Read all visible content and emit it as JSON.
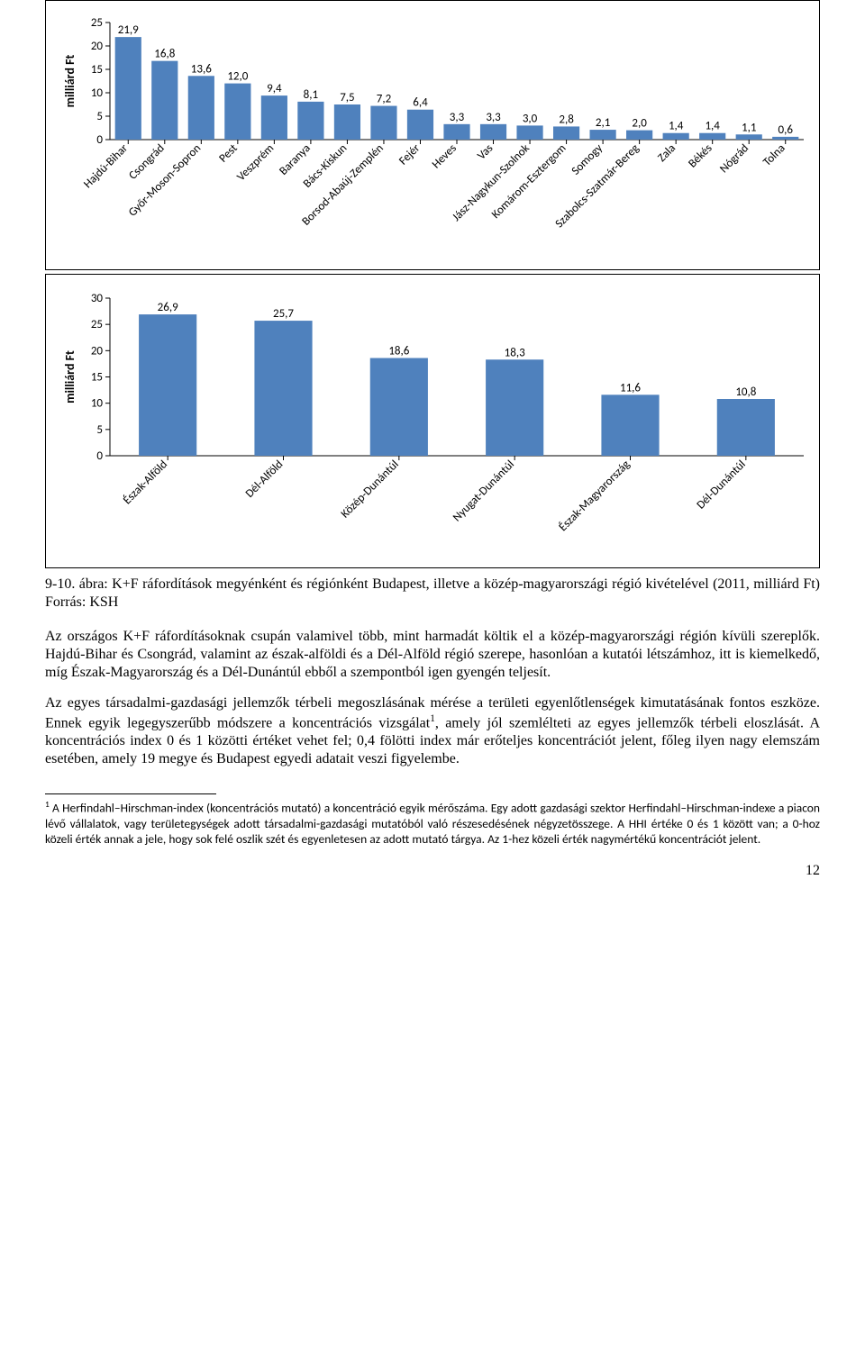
{
  "chart1": {
    "type": "bar",
    "ylabel": "milliárd Ft",
    "ylim": [
      0,
      25
    ],
    "ytick_step": 5,
    "bar_color": "#4f81bd",
    "axis_color": "#000000",
    "grid_color": "#e0e0e0",
    "background_color": "#ffffff",
    "tick_fontsize": 13,
    "value_fontsize": 13,
    "cat_fontsize": 13,
    "ylabel_fontsize": 14,
    "categories": [
      "Hajdú-Bihar",
      "Csongrád",
      "Győr-Moson-Sopron",
      "Pest",
      "Veszprém",
      "Baranya",
      "Bács-Kiskun",
      "Borsod-Abaúj-Zemplén",
      "Fejér",
      "Heves",
      "Vas",
      "Jász-Nagykun-Szolnok",
      "Komárom-Esztergom",
      "Somogy",
      "Szabolcs-Szatmár-Bereg",
      "Zala",
      "Békés",
      "Nógrád",
      "Tolna"
    ],
    "values": [
      21.9,
      16.8,
      13.6,
      12.0,
      9.4,
      8.1,
      7.5,
      7.2,
      6.4,
      3.3,
      3.3,
      3.0,
      2.8,
      2.1,
      2.0,
      1.4,
      1.4,
      1.1,
      0.6
    ],
    "value_labels": [
      "21,9",
      "16,8",
      "13,6",
      "12,0",
      "9,4",
      "8,1",
      "7,5",
      "7,2",
      "6,4",
      "3,3",
      "3,3",
      "3,0",
      "2,8",
      "2,1",
      "2,0",
      "1,4",
      "1,4",
      "1,1",
      "0,6"
    ]
  },
  "chart2": {
    "type": "bar",
    "ylabel": "milliárd Ft",
    "ylim": [
      0,
      30
    ],
    "ytick_step": 5,
    "bar_color": "#4f81bd",
    "axis_color": "#000000",
    "grid_color": "#e0e0e0",
    "background_color": "#ffffff",
    "tick_fontsize": 13,
    "value_fontsize": 13,
    "cat_fontsize": 13,
    "ylabel_fontsize": 14,
    "bar_width_ratio": 0.5,
    "categories": [
      "Észak-Alföld",
      "Dél-Alföld",
      "Közép-Dunántúl",
      "Nyugat-Dunántúl",
      "Észak-Magyarország",
      "Dél-Dunántúl"
    ],
    "values": [
      26.9,
      25.7,
      18.6,
      18.3,
      11.6,
      10.8
    ],
    "value_labels": [
      "26,9",
      "25,7",
      "18,6",
      "18,3",
      "11,6",
      "10,8"
    ]
  },
  "caption": "9-10. ábra: K+F ráfordítások megyénként és régiónként Budapest, illetve a közép-magyarországi régió kivételével (2011, milliárd Ft) Forrás: KSH",
  "para1": "Az országos K+F ráfordításoknak csupán valamivel több, mint harmadát költik el a közép-magyarországi régión kívüli szereplők. Hajdú-Bihar és Csongrád, valamint az észak-alföldi és a Dél-Alföld régió szerepe, hasonlóan a kutatói létszámhoz, itt is kiemelkedő, míg Észak-Magyarország és a Dél-Dunántúl ebből a szempontból igen gyengén teljesít.",
  "para2_pre": "Az egyes társadalmi-gazdasági jellemzők térbeli megoszlásának mérése a területi egyenlőtlenségek kimutatásának fontos eszköze. Ennek egyik legegyszerűbb módszere a koncentrációs vizsgálat",
  "para2_post": ", amely jól szemlélteti az egyes jellemzők térbeli eloszlását. A koncentrációs index 0 és 1 közötti értéket vehet fel; 0,4 fölötti index már erőteljes koncentrációt jelent, főleg ilyen nagy elemszám esetében, amely 19 megye és Budapest egyedi adatait veszi figyelembe.",
  "footnote_marker": "1",
  "footnote": " A Herfindahl–Hirschman-index (koncentrációs mutató) a koncentráció egyik mérőszáma. Egy adott gazdasági szektor Herfindahl–Hirschman-indexe a piacon lévő vállalatok, vagy területegységek adott társadalmi-gazdasági mutatóból való részesedésének négyzetösszege. A HHI értéke 0 és 1 között van; a 0-hoz közeli érték annak a jele, hogy sok felé oszlik szét és egyenletesen az adott mutató tárgya. Az 1-hez közeli érték nagymértékű koncentrációt jelent.",
  "page_number": "12"
}
